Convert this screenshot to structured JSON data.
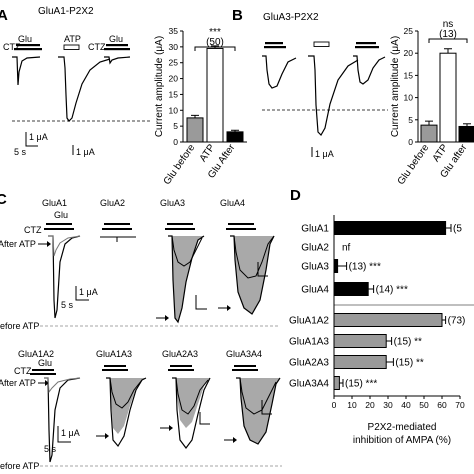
{
  "panels": {
    "a": {
      "letter": "A",
      "title": "GluA1-P2X2",
      "ctz": "CTZ",
      "glu": "Glu",
      "atp": "ATP",
      "ctz2": "CTZ",
      "glu2": "Glu",
      "scale_time": "5 s",
      "scale_amp": "1 μA",
      "scale_amp2": "1 μA"
    },
    "b": {
      "letter": "B",
      "title": "GluA3-P2X2",
      "atp": "ATP",
      "scale_amp": "1 μA"
    },
    "c": {
      "letter": "C",
      "ctz": "CTZ",
      "glu": "Glu",
      "after_atp": "After ATP",
      "before_atp": "Before ATP",
      "scale_time": "5 s",
      "scale_amp": "1 μA",
      "row1_titles": [
        "GluA1",
        "GluA2",
        "GluA3",
        "GluA4"
      ],
      "row2_titles": [
        "GluA1A2",
        "GluA1A3",
        "GluA2A3",
        "GluA3A4"
      ],
      "ctz2": "CTZ",
      "glu2": "Glu",
      "after_atp2": "After ATP",
      "before_atp2": "Before ATP",
      "scale_time2": "5 s",
      "scale_amp2": "1 μA"
    },
    "d": {
      "letter": "D"
    }
  },
  "chart_data": [
    {
      "id": "A-bar",
      "type": "bar",
      "categories": [
        "Glu before",
        "ATP",
        "Glu After"
      ],
      "values": [
        7.6,
        29.5,
        3.2
      ],
      "errors": [
        0.8,
        0.8,
        0.5
      ],
      "colors": [
        "#9a9a9a",
        "#ffffff",
        "#000000"
      ],
      "ylabel": "Current amplitude (μA)",
      "ylim": [
        0,
        35
      ],
      "yticks": [
        0,
        5,
        10,
        15,
        20,
        25,
        30,
        35
      ],
      "significance": "***",
      "n": "(50)"
    },
    {
      "id": "B-bar",
      "type": "bar",
      "categories": [
        "Glu before",
        "ATP",
        "Glu after"
      ],
      "values": [
        3.8,
        20.0,
        3.5
      ],
      "errors": [
        0.9,
        1.0,
        0.6
      ],
      "colors": [
        "#9a9a9a",
        "#ffffff",
        "#000000"
      ],
      "ylabel": "Current amplitude (μA)",
      "ylim": [
        0,
        25
      ],
      "yticks": [
        0,
        5,
        10,
        15,
        20,
        25
      ],
      "significance": "ns",
      "n": "(13)"
    },
    {
      "id": "D-hbar",
      "type": "bar",
      "orientation": "horizontal",
      "categories": [
        "GluA1",
        "GluA2",
        "GluA3",
        "GluA4",
        "GluA1A2",
        "GluA1A3",
        "GluA2A3",
        "GluA3A4"
      ],
      "values": [
        62,
        null,
        2,
        19,
        60,
        29,
        29,
        3
      ],
      "errors": [
        3,
        null,
        5,
        3,
        2,
        3,
        4,
        2
      ],
      "colors": [
        "#000000",
        "#000000",
        "#000000",
        "#000000",
        "#9a9a9a",
        "#9a9a9a",
        "#9a9a9a",
        "#9a9a9a"
      ],
      "annotations": [
        "(5",
        "nf",
        "(13) ***",
        "(14) ***",
        "(73)",
        "(15) **",
        "(15) **",
        "(15) ***"
      ],
      "xlabel": "P2X2-mediated inhibition of AMPA (%)",
      "xlim": [
        0,
        70
      ],
      "xticks": [
        0,
        10,
        20,
        30,
        40,
        50,
        60,
        70
      ]
    }
  ]
}
